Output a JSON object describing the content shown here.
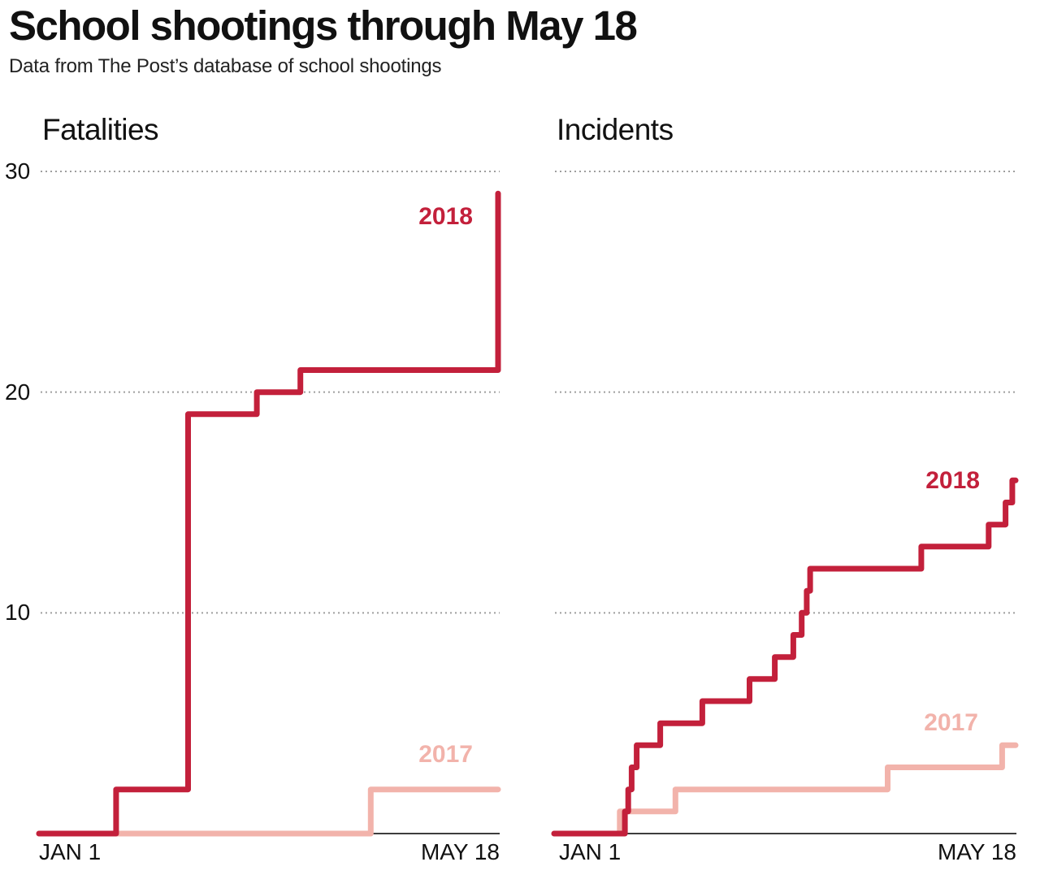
{
  "header": {
    "title": "School shootings through May 18",
    "subtitle": "Data from The Post’s database of school shootings"
  },
  "colors": {
    "series_2018": "#c3203b",
    "series_2017": "#f2b3ab",
    "grid": "#9e9e9e",
    "axis": "#3d3d3d",
    "text": "#111111"
  },
  "chart_data": [
    {
      "type": "line",
      "subtype": "step-after-cumulative",
      "title": "Fatalities",
      "grid": "horizontal dotted",
      "legend": "inline series labels",
      "x_axis": {
        "start_label": "JAN 1",
        "end_label": "MAY 18",
        "domain_days": [
          0,
          137
        ]
      },
      "y_axis": {
        "ticks": [
          30,
          20,
          10
        ],
        "tick_labels": [
          "30",
          "20",
          "10"
        ],
        "labels_visible": true,
        "range": [
          0,
          31
        ]
      },
      "series": [
        {
          "name": "2017",
          "color": "#f2b3ab",
          "final_value": 2,
          "points": [
            [
              0,
              0
            ],
            [
              99,
              2
            ],
            [
              137,
              2
            ]
          ]
        },
        {
          "name": "2018",
          "color": "#c3203b",
          "final_value": 29,
          "points": [
            [
              0,
              0
            ],
            [
              23,
              2
            ],
            [
              44.5,
              19
            ],
            [
              65,
              20
            ],
            [
              78,
              21
            ],
            [
              137,
              29
            ]
          ]
        }
      ]
    },
    {
      "type": "line",
      "subtype": "step-after-cumulative",
      "title": "Incidents",
      "grid": "horizontal dotted",
      "legend": "inline series labels",
      "x_axis": {
        "start_label": "JAN 1",
        "end_label": "MAY 18",
        "domain_days": [
          0,
          137
        ]
      },
      "y_axis": {
        "ticks": [
          30,
          20,
          10
        ],
        "tick_labels": [
          "30",
          "20",
          "10"
        ],
        "labels_visible": false,
        "range": [
          0,
          31
        ]
      },
      "series": [
        {
          "name": "2017",
          "color": "#f2b3ab",
          "final_value": 4,
          "points": [
            [
              0,
              0
            ],
            [
              19.5,
              1
            ],
            [
              36,
              2
            ],
            [
              99,
              3
            ],
            [
              133,
              4
            ],
            [
              137,
              4
            ]
          ]
        },
        {
          "name": "2018",
          "color": "#c3203b",
          "final_value": 16,
          "points": [
            [
              0,
              0
            ],
            [
              21,
              1
            ],
            [
              22,
              2
            ],
            [
              23,
              3
            ],
            [
              24.5,
              4
            ],
            [
              31.5,
              5
            ],
            [
              44,
              6
            ],
            [
              58,
              7
            ],
            [
              65.5,
              8
            ],
            [
              71,
              9
            ],
            [
              73.5,
              10
            ],
            [
              75,
              11
            ],
            [
              76,
              12
            ],
            [
              109,
              13
            ],
            [
              129,
              14
            ],
            [
              134,
              15
            ],
            [
              136,
              16
            ],
            [
              137,
              16
            ]
          ]
        }
      ]
    }
  ]
}
